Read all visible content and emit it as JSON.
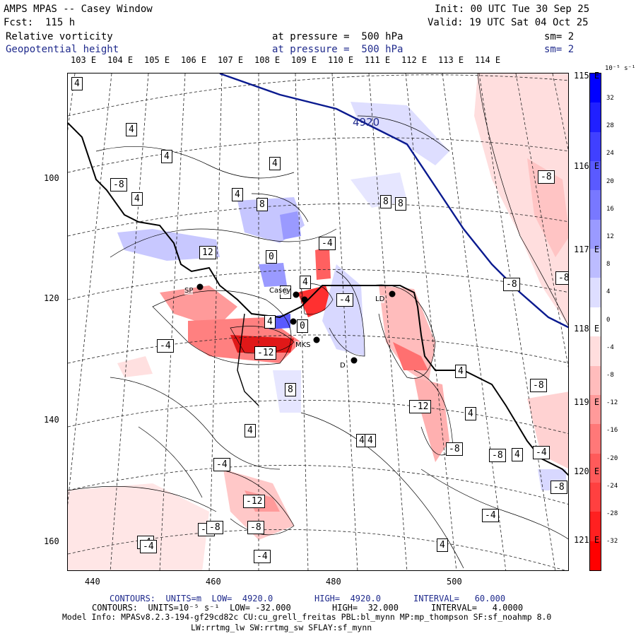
{
  "header": {
    "title": "AMPS MPAS -- Casey Window",
    "fcst": "Fcst:  115 h",
    "init": "Init: 00 UTC Tue 30 Sep 25",
    "valid": "Valid: 19 UTC Sat 04 Oct 25",
    "field1": "Relative vorticity",
    "field1_level": "at pressure =  500 hPa",
    "field1_sm": "sm= 2",
    "field2": "Geopotential height",
    "field2_level": "at pressure =  500 hPa",
    "field2_sm": "sm= 2"
  },
  "top_lon_labels": [
    "103 E",
    "104 E",
    "105 E",
    "106 E",
    "107 E",
    "108 E",
    "109 E",
    "110 E",
    "111 E",
    "112 E",
    "113 E",
    "114 E"
  ],
  "right_lon_labels": [
    "115 E",
    "116 E",
    "117 E",
    "118 E",
    "119 E",
    "120 E",
    "121 E"
  ],
  "y_ticks": [
    "100",
    "120",
    "140",
    "160"
  ],
  "x_ticks": [
    "440",
    "460",
    "480",
    "500"
  ],
  "colorbar": {
    "unit": "10⁻⁵ s⁻¹",
    "labels": [
      "32",
      "28",
      "24",
      "20",
      "16",
      "12",
      "8",
      "4",
      "0",
      "-4",
      "-8",
      "-12",
      "-16",
      "-20",
      "-24",
      "-28",
      "-32"
    ],
    "colors": [
      "#0000ff",
      "#2020ff",
      "#4040ff",
      "#5a5aff",
      "#7878ff",
      "#9a9aff",
      "#bcbcff",
      "#dedeff",
      "#ffffff",
      "#ffdede",
      "#ffbcbc",
      "#ff9a9a",
      "#ff7878",
      "#ff5a5a",
      "#ff4040",
      "#ff2020",
      "#ff0000"
    ]
  },
  "height_contour_label": "4920",
  "contour_labels": [
    "4",
    "4",
    "4",
    "4",
    "4",
    "-8",
    "8",
    "4",
    "12",
    "8",
    "-8",
    "-4",
    "-4",
    "4",
    "-8",
    "-8",
    "4",
    "-4",
    "4",
    "-12",
    "8",
    "4",
    "-12",
    "-8",
    "-4",
    "-8",
    "-4",
    "4",
    "-8",
    "-4",
    "-4",
    "-12",
    "-8",
    "-8",
    "-4",
    "4",
    "4",
    "-4",
    "4",
    "-8",
    "4",
    "4",
    "-8",
    "8",
    "0",
    "0",
    "0"
  ],
  "stations": [
    "SP",
    "Casey",
    "LD",
    "MKS",
    "D"
  ],
  "footer": {
    "line1_a": "CONTOURS:  UNITS=m  LOW=  4920.0",
    "line1_b": "HIGH=  4920.0",
    "line1_c": "INTERVAL=   60.000",
    "line2_a": "CONTOURS:  UNITS=10⁻⁵ s⁻¹  LOW= -32.000",
    "line2_b": "HIGH=  32.000",
    "line2_c": "INTERVAL=   4.0000",
    "line3": "Model Info: MPASv8.2.3-194-gf29cd82c CU:cu_grell_freitas PBL:bl_mynn MP:mp_thompson SF:sf_noahmp 8.0",
    "line4": "LW:rrtmg_lw SW:rrtmg_sw SFLAY:sf_mynn"
  }
}
